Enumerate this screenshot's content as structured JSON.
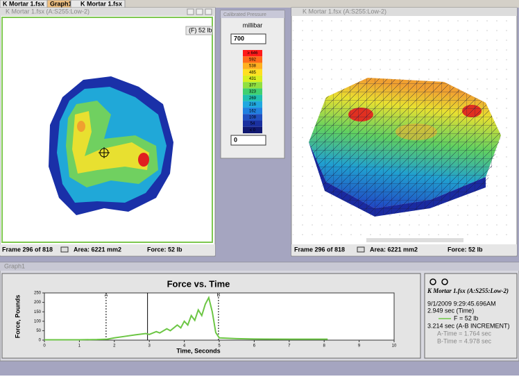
{
  "tabs": [
    "K Mortar 1.fsx",
    "Graph1",
    "K Mortar 1.fsx"
  ],
  "left_window": {
    "title": "K Mortar 1.fsx (A:S255:Low-2)",
    "badge": "(F) 52 lb",
    "status": [
      "Frame 296 of 818",
      "Area: 6221 mm2",
      "Force: 52 lb"
    ]
  },
  "palette": {
    "title": "Calibrated Pressure",
    "unit": "millibar",
    "max_input": "700",
    "min_input": "0",
    "scale": [
      "≥ 646",
      "592",
      "538",
      "485",
      "431",
      "377",
      "323",
      "269",
      "216",
      "162",
      "108",
      "54",
      "≤ 0"
    ],
    "colors": [
      "#ff1a1a",
      "#ff6a1a",
      "#ffb020",
      "#ffe020",
      "#d8f020",
      "#90e040",
      "#40d070",
      "#20c0b0",
      "#20a8e0",
      "#2080e0",
      "#2050c0",
      "#1a30a0",
      "#101870"
    ]
  },
  "right_window": {
    "title": "K Mortar 1.fsx (A:S255:Low-2)",
    "status": [
      "Frame 296 of 818",
      "Area: 6221 mm2",
      "Force: 52 lb"
    ]
  },
  "graph_window": {
    "title": "Graph1",
    "info": [
      "K Mortar 1.fsx (A:S255:Low-2)",
      "9/1/2009 9:29:45.696AM",
      "2.949 sec (Time)",
      "3.214 sec (A-B INCREMENT)",
      "A-Time = 1.764 sec",
      "B-Time = 4.978 sec"
    ]
  },
  "chart_data": {
    "type": "line",
    "title": "Force vs. Time",
    "x_label": "Time, Seconds",
    "y_label": "Force, Pounds",
    "x": [
      0,
      0.5,
      1.0,
      1.5,
      1.8,
      2.0,
      2.3,
      2.6,
      2.9,
      3.0,
      3.2,
      3.3,
      3.5,
      3.6,
      3.8,
      3.9,
      4.0,
      4.1,
      4.2,
      4.3,
      4.4,
      4.5,
      4.6,
      4.7,
      4.8,
      4.9,
      5.0,
      5.5,
      6,
      7,
      8.1
    ],
    "series": [
      {
        "name": "F = 52 lb",
        "color": "#6cc644",
        "values": [
          2,
          2,
          2,
          3,
          5,
          12,
          20,
          28,
          35,
          30,
          45,
          38,
          60,
          50,
          80,
          65,
          100,
          80,
          130,
          105,
          160,
          130,
          190,
          225,
          150,
          40,
          12,
          8,
          6,
          5,
          5
        ]
      }
    ],
    "xlim": [
      0,
      10
    ],
    "ylim": [
      0,
      250
    ],
    "xticks": [
      0,
      1,
      2,
      3,
      4,
      5,
      6,
      7,
      8,
      9,
      10
    ],
    "yticks": [
      0,
      50,
      100,
      150,
      200,
      250
    ],
    "markers": [
      {
        "label": "A",
        "x": 1.764
      },
      {
        "label": "B",
        "x": 4.978
      }
    ],
    "cursor_x": 2.949
  }
}
